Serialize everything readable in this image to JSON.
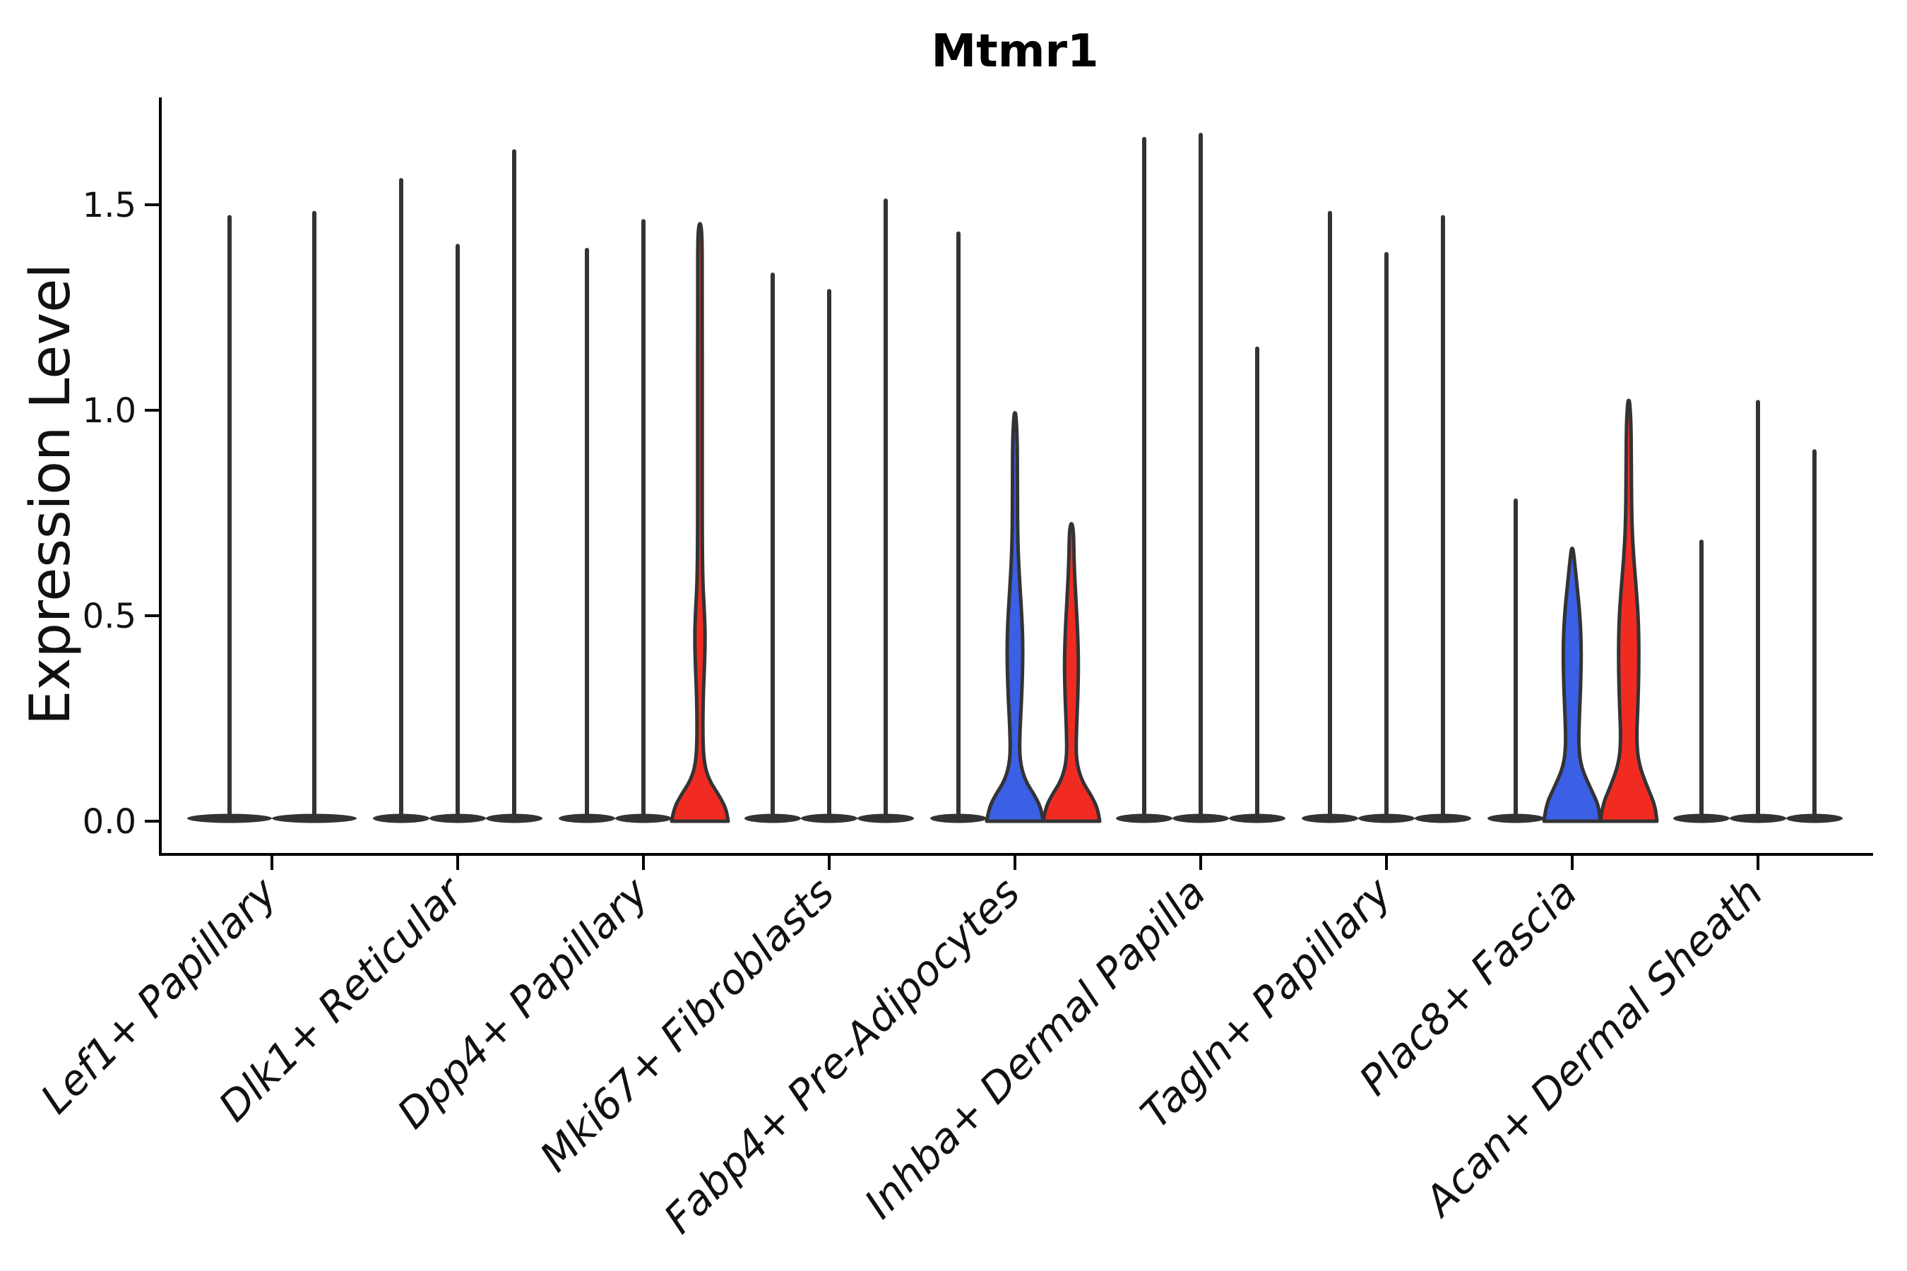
{
  "chart_data": {
    "type": "violin",
    "title": "Mtmr1",
    "ylabel": "Expression Level",
    "yticks": [
      "0.0",
      "0.5",
      "1.0",
      "1.5"
    ],
    "ytick_values": [
      0,
      0.5,
      1.0,
      1.5
    ],
    "ylim": [
      -0.08,
      1.76
    ],
    "legend": "none",
    "grid": "off",
    "colors": {
      "blue": "#3B5FE5",
      "red": "#F22B22",
      "outline": "#333333"
    },
    "categories": [
      "Lef1+ Papillary",
      "Dlk1+ Reticular",
      "Dpp4+ Papillary",
      "Mki67+ Fibroblasts",
      "Fabp4+ Pre-Adipocytes",
      "Inhba+ Dermal Papilla",
      "Tagln+ Papillary",
      "Plac8+ Fascia",
      "Acan+ Dermal Sheath"
    ],
    "groups": [
      {
        "category": "Lef1+ Papillary",
        "violins": [
          {
            "offset": -60,
            "color": "outline",
            "shape": "needle",
            "max": 1.47,
            "base_halfwidth": 60
          },
          {
            "offset": 60,
            "color": "outline",
            "shape": "needle",
            "max": 1.48,
            "base_halfwidth": 60
          }
        ]
      },
      {
        "category": "Dlk1+ Reticular",
        "violins": [
          {
            "offset": -80,
            "color": "outline",
            "shape": "needle",
            "max": 1.56,
            "base_halfwidth": 40
          },
          {
            "offset": 0,
            "color": "outline",
            "shape": "needle",
            "max": 1.4,
            "base_halfwidth": 40
          },
          {
            "offset": 80,
            "color": "outline",
            "shape": "needle",
            "max": 1.63,
            "base_halfwidth": 40
          }
        ]
      },
      {
        "category": "Dpp4+ Papillary",
        "violins": [
          {
            "offset": -80,
            "color": "outline",
            "shape": "needle",
            "max": 1.39,
            "base_halfwidth": 40
          },
          {
            "offset": 0,
            "color": "outline",
            "shape": "needle",
            "max": 1.46,
            "base_halfwidth": 40
          },
          {
            "offset": 80,
            "color": "red",
            "shape": "violin",
            "max": 1.45,
            "base_halfwidth": 40,
            "profile": [
              [
                0,
                40
              ],
              [
                0.03,
                37
              ],
              [
                0.06,
                28
              ],
              [
                0.1,
                13
              ],
              [
                0.14,
                6
              ],
              [
                0.2,
                4
              ],
              [
                0.3,
                4.5
              ],
              [
                0.38,
                6.5
              ],
              [
                0.45,
                7.5
              ],
              [
                0.52,
                6
              ],
              [
                0.58,
                4
              ],
              [
                0.7,
                3.2
              ],
              [
                1.0,
                3.2
              ],
              [
                1.3,
                3.2
              ],
              [
                1.42,
                3
              ],
              [
                1.45,
                1.5
              ]
            ]
          }
        ]
      },
      {
        "category": "Mki67+ Fibroblasts",
        "violins": [
          {
            "offset": -80,
            "color": "outline",
            "shape": "needle",
            "max": 1.33,
            "base_halfwidth": 40
          },
          {
            "offset": 0,
            "color": "outline",
            "shape": "needle",
            "max": 1.29,
            "base_halfwidth": 40
          },
          {
            "offset": 80,
            "color": "outline",
            "shape": "needle",
            "max": 1.51,
            "base_halfwidth": 40
          }
        ]
      },
      {
        "category": "Fabp4+ Pre-Adipocytes",
        "violins": [
          {
            "offset": -80,
            "color": "outline",
            "shape": "needle",
            "max": 1.43,
            "base_halfwidth": 40
          },
          {
            "offset": 0,
            "color": "blue",
            "shape": "violin",
            "max": 0.99,
            "base_halfwidth": 40,
            "profile": [
              [
                0,
                40
              ],
              [
                0.03,
                37
              ],
              [
                0.06,
                29
              ],
              [
                0.1,
                14
              ],
              [
                0.15,
                6.5
              ],
              [
                0.22,
                7
              ],
              [
                0.3,
                9.5
              ],
              [
                0.38,
                11
              ],
              [
                0.45,
                11
              ],
              [
                0.52,
                9
              ],
              [
                0.6,
                6
              ],
              [
                0.68,
                4
              ],
              [
                0.8,
                3.4
              ],
              [
                0.92,
                3.4
              ],
              [
                0.99,
                1.5
              ]
            ]
          },
          {
            "offset": 80,
            "color": "red",
            "shape": "violin",
            "max": 0.72,
            "base_halfwidth": 40,
            "profile": [
              [
                0,
                40
              ],
              [
                0.03,
                37
              ],
              [
                0.06,
                29
              ],
              [
                0.1,
                14
              ],
              [
                0.15,
                6.5
              ],
              [
                0.22,
                7
              ],
              [
                0.3,
                9
              ],
              [
                0.38,
                10
              ],
              [
                0.45,
                9
              ],
              [
                0.52,
                7
              ],
              [
                0.58,
                5
              ],
              [
                0.64,
                3.6
              ],
              [
                0.7,
                3
              ],
              [
                0.72,
                1.5
              ]
            ]
          }
        ]
      },
      {
        "category": "Inhba+ Dermal Papilla",
        "violins": [
          {
            "offset": -80,
            "color": "outline",
            "shape": "needle",
            "max": 1.66,
            "base_halfwidth": 40
          },
          {
            "offset": 0,
            "color": "outline",
            "shape": "needle",
            "max": 1.67,
            "base_halfwidth": 40
          },
          {
            "offset": 80,
            "color": "outline",
            "shape": "needle",
            "max": 1.15,
            "base_halfwidth": 40
          }
        ]
      },
      {
        "category": "Tagln+ Papillary",
        "violins": [
          {
            "offset": -80,
            "color": "outline",
            "shape": "needle",
            "max": 1.48,
            "base_halfwidth": 40
          },
          {
            "offset": 0,
            "color": "outline",
            "shape": "needle",
            "max": 1.38,
            "base_halfwidth": 40
          },
          {
            "offset": 80,
            "color": "outline",
            "shape": "needle",
            "max": 1.47,
            "base_halfwidth": 40
          }
        ]
      },
      {
        "category": "Plac8+ Fascia",
        "violins": [
          {
            "offset": -80,
            "color": "outline",
            "shape": "needle",
            "max": 0.78,
            "base_halfwidth": 40
          },
          {
            "offset": 0,
            "color": "blue",
            "shape": "violin",
            "max": 0.66,
            "base_halfwidth": 40,
            "profile": [
              [
                0,
                40
              ],
              [
                0.04,
                37
              ],
              [
                0.08,
                26
              ],
              [
                0.13,
                13
              ],
              [
                0.18,
                9
              ],
              [
                0.25,
                10
              ],
              [
                0.33,
                12
              ],
              [
                0.42,
                13
              ],
              [
                0.5,
                11
              ],
              [
                0.57,
                7
              ],
              [
                0.62,
                4
              ],
              [
                0.66,
                1.5
              ]
            ]
          },
          {
            "offset": 80,
            "color": "red",
            "shape": "violin",
            "max": 1.02,
            "base_halfwidth": 40,
            "profile": [
              [
                0,
                40
              ],
              [
                0.04,
                37
              ],
              [
                0.08,
                27
              ],
              [
                0.14,
                14
              ],
              [
                0.2,
                11
              ],
              [
                0.28,
                13
              ],
              [
                0.38,
                14.5
              ],
              [
                0.48,
                14
              ],
              [
                0.56,
                11
              ],
              [
                0.64,
                7
              ],
              [
                0.72,
                4.5
              ],
              [
                0.85,
                3.6
              ],
              [
                0.96,
                3.4
              ],
              [
                1.02,
                1.5
              ]
            ]
          }
        ]
      },
      {
        "category": "Acan+ Dermal Sheath",
        "violins": [
          {
            "offset": -80,
            "color": "outline",
            "shape": "needle",
            "max": 0.68,
            "base_halfwidth": 40
          },
          {
            "offset": 0,
            "color": "outline",
            "shape": "needle",
            "max": 1.02,
            "base_halfwidth": 40
          },
          {
            "offset": 80,
            "color": "outline",
            "shape": "needle",
            "max": 0.9,
            "base_halfwidth": 40
          }
        ]
      }
    ]
  }
}
